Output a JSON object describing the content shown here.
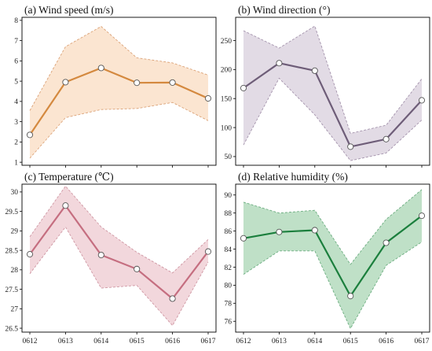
{
  "chart_data": [
    {
      "id": "a",
      "type": "line",
      "title": "(a) Wind speed (m/s)",
      "x": [
        "0612",
        "0613",
        "0614",
        "0615",
        "0616",
        "0617"
      ],
      "yticks": [
        1,
        2,
        3,
        4,
        5,
        6,
        7,
        8
      ],
      "ylim": [
        0.85,
        8.15
      ],
      "series": [
        {
          "values": [
            2.35,
            4.95,
            5.65,
            4.92,
            4.93,
            4.15
          ],
          "lower": [
            1.2,
            3.2,
            3.6,
            3.65,
            3.95,
            3.05
          ],
          "upper": [
            3.55,
            6.7,
            7.7,
            6.15,
            5.9,
            5.3
          ]
        }
      ],
      "line_color": "#d4893f",
      "fill_color": "#fbe5d1",
      "band_edge_color": "#dba277",
      "grid": false
    },
    {
      "id": "b",
      "type": "line",
      "title": "(b) Wind direction (°)",
      "x": [
        "0612",
        "0613",
        "0614",
        "0615",
        "0616",
        "0617"
      ],
      "yticks": [
        50,
        100,
        150,
        200,
        250
      ],
      "ylim": [
        35,
        290
      ],
      "series": [
        {
          "values": [
            168,
            211,
            198,
            67,
            80,
            147
          ],
          "lower": [
            70,
            185,
            122,
            43,
            56,
            113
          ],
          "upper": [
            267,
            237,
            275,
            90,
            104,
            184
          ]
        }
      ],
      "line_color": "#6e5d78",
      "fill_color": "#e2dbe5",
      "band_edge_color": "#a493ac",
      "grid": false
    },
    {
      "id": "c",
      "type": "line",
      "title": "(c) Temperature (℃)",
      "x": [
        "0612",
        "0613",
        "0614",
        "0615",
        "0616",
        "0617"
      ],
      "yticks": [
        26.5,
        27.0,
        27.5,
        28.0,
        28.5,
        29.0,
        29.5,
        30.0
      ],
      "ylim": [
        26.4,
        30.2
      ],
      "series": [
        {
          "values": [
            28.4,
            29.65,
            28.38,
            28.02,
            27.26,
            28.47
          ],
          "lower": [
            27.9,
            29.1,
            27.53,
            27.6,
            26.57,
            28.2
          ],
          "upper": [
            28.85,
            30.15,
            29.1,
            28.45,
            27.92,
            28.78
          ]
        }
      ],
      "line_color": "#c56e80",
      "fill_color": "#f2d7dc",
      "band_edge_color": "#cf97a3",
      "grid": false
    },
    {
      "id": "d",
      "type": "line",
      "title": "(d) Relative humidity (%)",
      "x": [
        "0612",
        "0613",
        "0614",
        "0615",
        "0616",
        "0617"
      ],
      "yticks": [
        76,
        78,
        80,
        82,
        84,
        86,
        88,
        90
      ],
      "ylim": [
        74.8,
        91.2
      ],
      "series": [
        {
          "values": [
            85.2,
            85.9,
            86.1,
            78.8,
            84.7,
            87.7
          ],
          "lower": [
            81.2,
            83.8,
            83.8,
            75.2,
            82.2,
            84.8
          ],
          "upper": [
            89.2,
            88.0,
            88.3,
            82.3,
            87.3,
            90.6
          ]
        }
      ],
      "line_color": "#1b7f3d",
      "fill_color": "#bfe0c7",
      "band_edge_color": "#6cad80",
      "grid": false
    }
  ]
}
